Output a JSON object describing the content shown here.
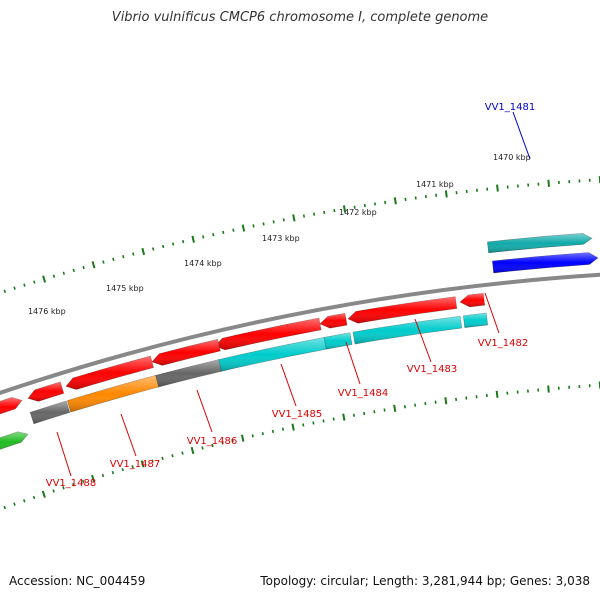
{
  "title": "Vibrio vulnificus CMCP6 chromosome I, complete genome",
  "footer": {
    "accession": "Accession: NC_004459",
    "summary": "Topology: circular; Length: 3,281,944 bp; Genes: 3,038"
  },
  "ticks": [
    "1470 kbp",
    "1471 kbp",
    "1472 kbp",
    "1473 kbp",
    "1474 kbp",
    "1475 kbp",
    "1476 kbp"
  ],
  "genes": [
    {
      "id": "VV1_1481",
      "color": "#0000ff",
      "label_color": "#0000cc"
    },
    {
      "id": "VV1_1482",
      "color": "#00cccc",
      "label_color": "#dd0000"
    },
    {
      "id": "VV1_1483",
      "color": "#00cccc",
      "label_color": "#dd0000"
    },
    {
      "id": "VV1_1484",
      "color": "#00cccc",
      "label_color": "#dd0000"
    },
    {
      "id": "VV1_1485",
      "color": "#00cccc",
      "label_color": "#dd0000"
    },
    {
      "id": "VV1_1486",
      "color": "#666666",
      "label_color": "#dd0000"
    },
    {
      "id": "VV1_1487",
      "color": "#ff8800",
      "label_color": "#dd0000"
    },
    {
      "id": "VV1_1488",
      "color": "#666666",
      "label_color": "#dd0000"
    }
  ],
  "colors": {
    "backbone": "#888888",
    "tick": "#1a7a1a",
    "forward_gene": "#ff0000",
    "teal_gene": "#11aaaa",
    "green_gene": "#22bb22"
  }
}
